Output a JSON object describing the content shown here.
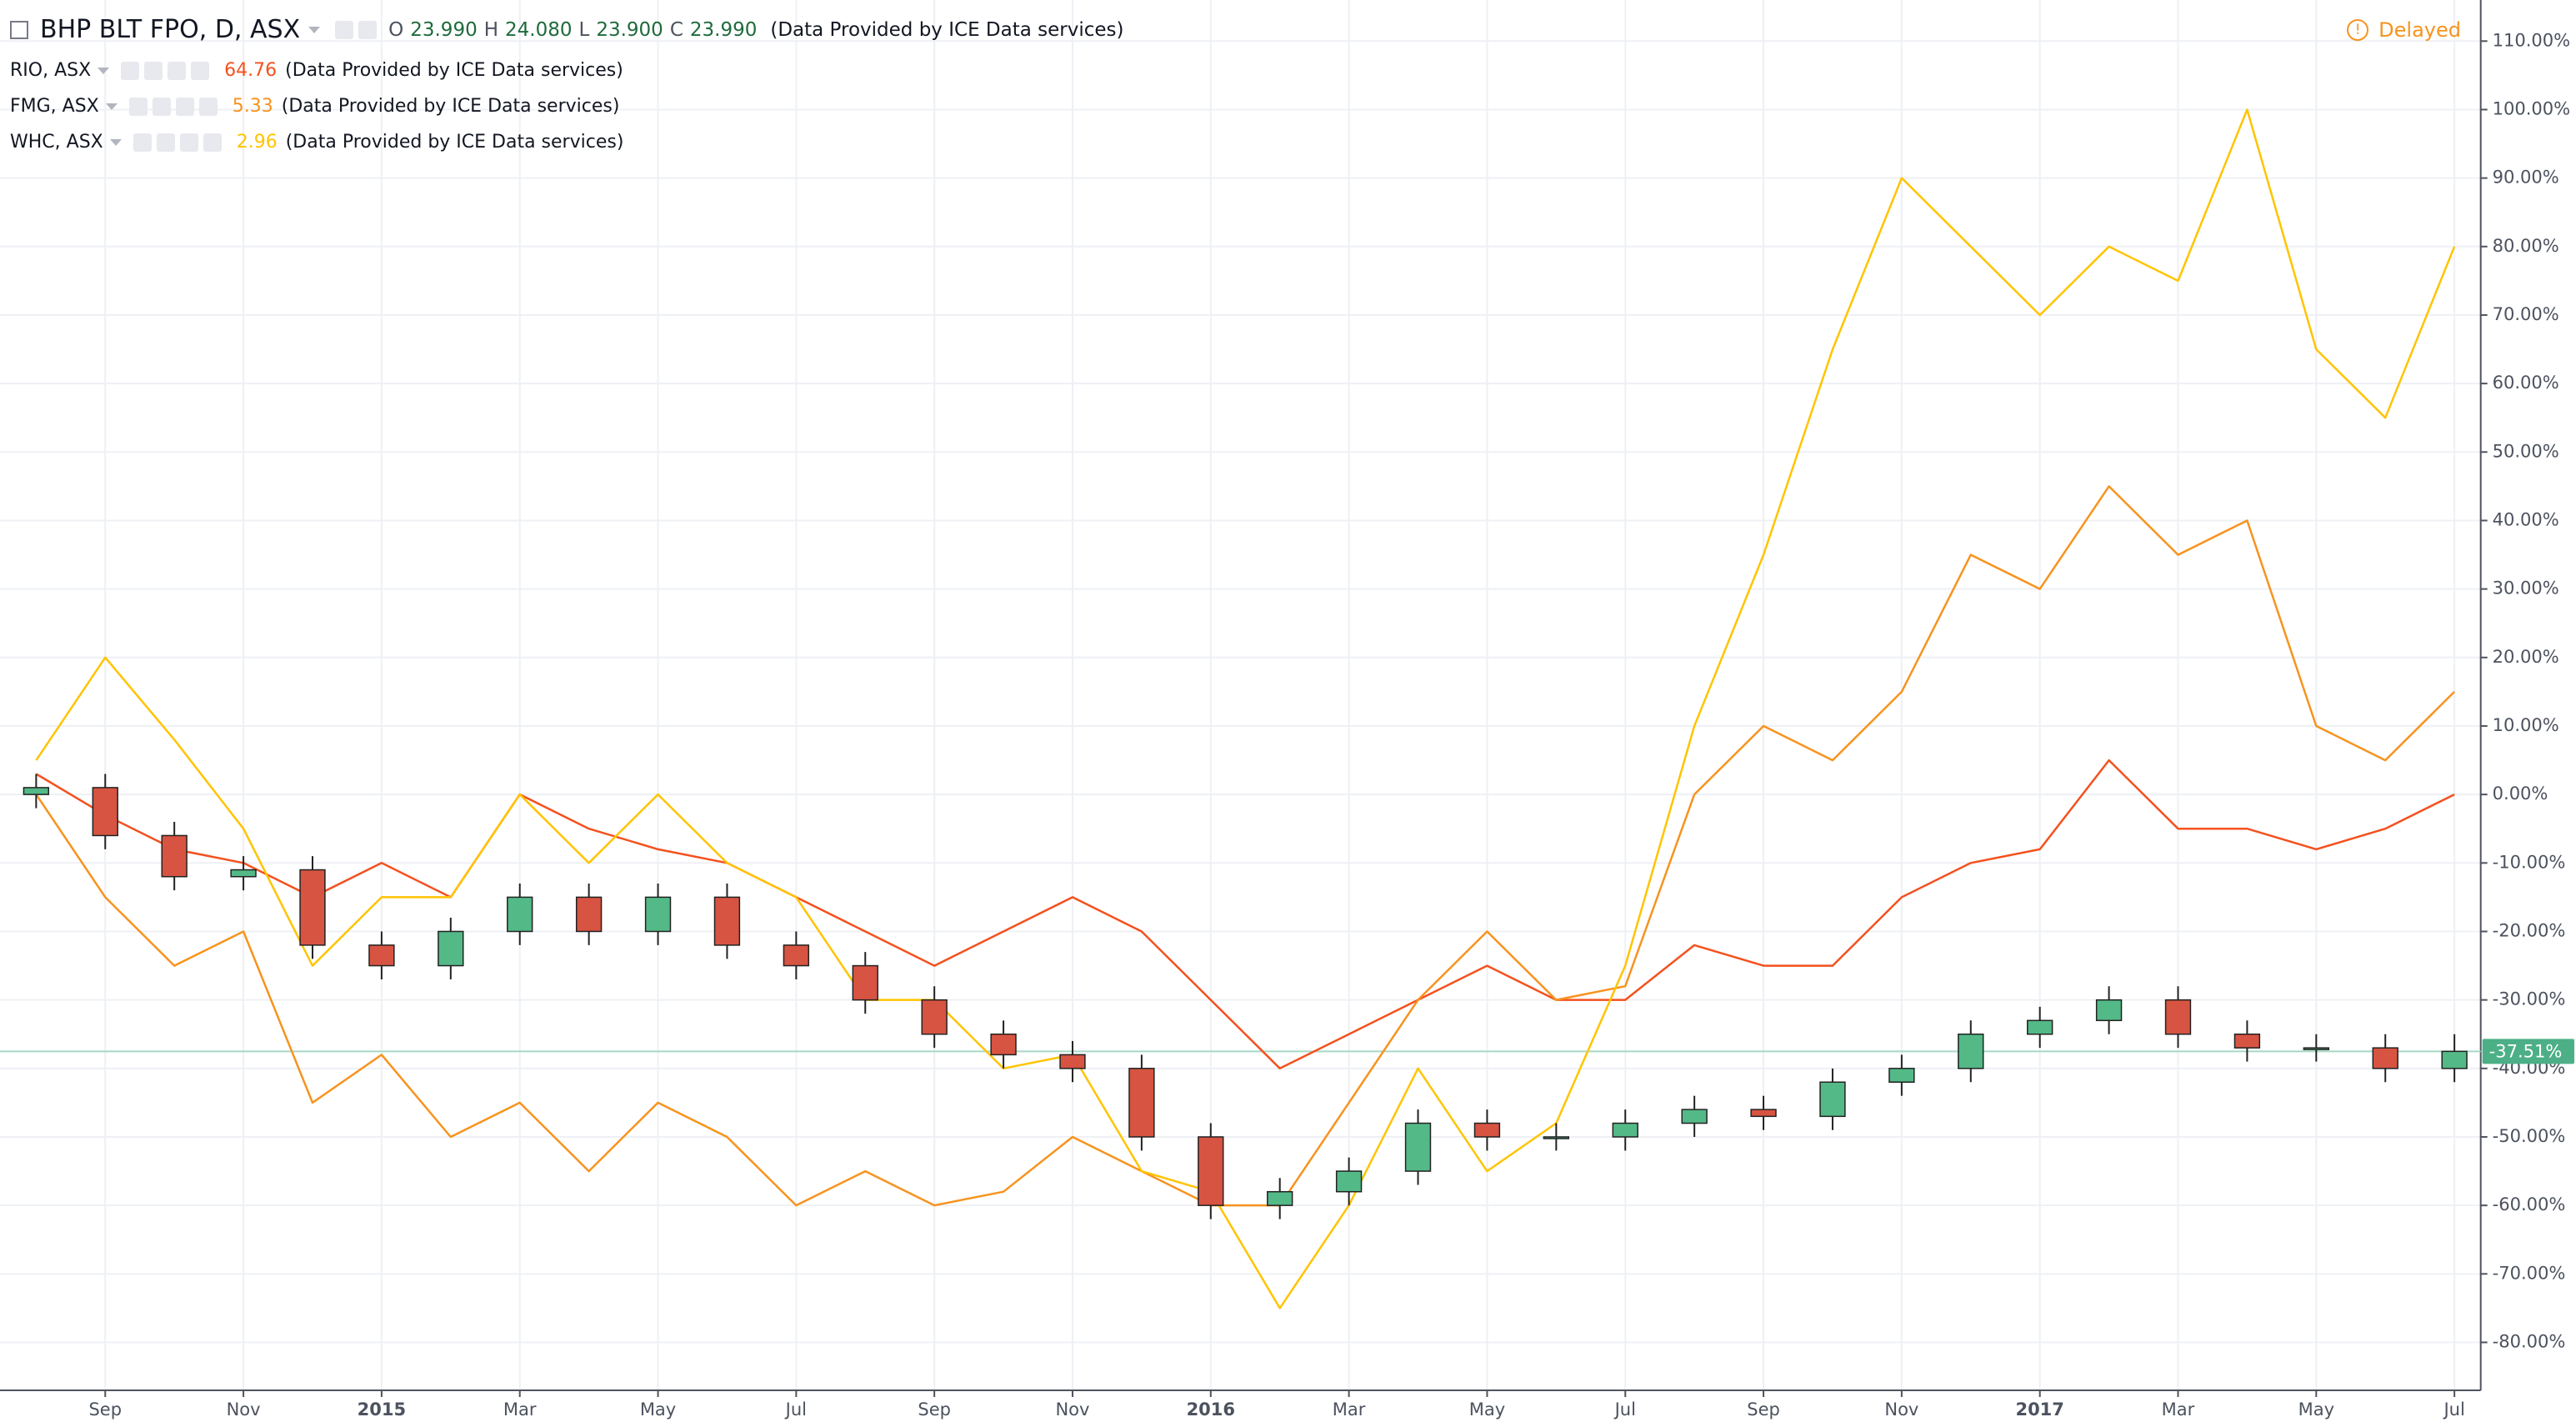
{
  "chart_data": {
    "type": "candlestick",
    "title": "BHP BLT FPO, D, ASX",
    "ohlc": [
      {
        "key": "O",
        "text": "23.990"
      },
      {
        "key": "H",
        "text": "24.080"
      },
      {
        "key": "L",
        "text": "23.900"
      },
      {
        "key": "C",
        "text": "23.990"
      }
    ],
    "source": "(Data Provided by ICE Data services)",
    "status": "Delayed",
    "categories": [
      null,
      "Sep",
      null,
      "Nov",
      null,
      "2015",
      null,
      "Mar",
      null,
      "May",
      null,
      "Jul",
      null,
      "Sep",
      null,
      "Nov",
      null,
      "2016",
      null,
      "Mar",
      null,
      "May",
      null,
      "Jul",
      null,
      "Sep",
      null,
      "Nov",
      null,
      "2017",
      null,
      "Mar",
      null,
      "May",
      null,
      "Jul"
    ],
    "candles": {
      "up_color": "#53b987",
      "down_color": "#d75442",
      "open": [
        0,
        1,
        -6,
        -12,
        -11,
        -22,
        -25,
        -20,
        -15,
        -20,
        -15,
        -22,
        -25,
        -30,
        -35,
        -38,
        -40,
        -50,
        -60,
        -58,
        -55,
        -48,
        -50,
        -50,
        -48,
        -46,
        -47,
        -42,
        -40,
        -35,
        -33,
        -30,
        -35,
        -37,
        -37,
        -40
      ],
      "high": [
        3,
        3,
        -4,
        -9,
        -9,
        -20,
        -18,
        -13,
        -13,
        -13,
        -13,
        -20,
        -23,
        -28,
        -33,
        -36,
        -38,
        -48,
        -56,
        -53,
        -46,
        -46,
        -48,
        -46,
        -44,
        -44,
        -40,
        -38,
        -33,
        -31,
        -28,
        -28,
        -33,
        -35,
        -35,
        -35
      ],
      "low": [
        -2,
        -8,
        -14,
        -14,
        -24,
        -27,
        -27,
        -22,
        -22,
        -22,
        -24,
        -27,
        -32,
        -37,
        -40,
        -42,
        -52,
        -62,
        -62,
        -60,
        -57,
        -52,
        -52,
        -52,
        -50,
        -49,
        -49,
        -44,
        -42,
        -37,
        -35,
        -37,
        -39,
        -39,
        -42,
        -42
      ],
      "close": [
        1,
        -6,
        -12,
        -11,
        -22,
        -25,
        -20,
        -15,
        -20,
        -15,
        -22,
        -25,
        -30,
        -35,
        -38,
        -40,
        -50,
        -60,
        -58,
        -55,
        -48,
        -50,
        -50,
        -48,
        -46,
        -47,
        -42,
        -40,
        -35,
        -33,
        -30,
        -35,
        -37,
        -37,
        -40,
        -37.51
      ]
    },
    "price_line": {
      "value": -37.51,
      "label": "-37.51%",
      "color": "#4caf86"
    },
    "series": [
      {
        "name": "RIO, ASX",
        "last": "64.76",
        "color": "#f4511e",
        "values": [
          3,
          -3,
          -8,
          -10,
          -15,
          -10,
          -15,
          0,
          -5,
          -8,
          -10,
          -15,
          -20,
          -25,
          -20,
          -15,
          -20,
          -30,
          -40,
          -35,
          -30,
          -25,
          -30,
          -30,
          -22,
          -25,
          -25,
          -15,
          -10,
          -8,
          5,
          -5,
          -5,
          -8,
          -5,
          0
        ]
      },
      {
        "name": "FMG, ASX",
        "last": "5.33",
        "color": "#f7931e",
        "values": [
          0,
          -15,
          -25,
          -20,
          -45,
          -38,
          -50,
          -45,
          -55,
          -45,
          -50,
          -60,
          -55,
          -60,
          -58,
          -50,
          -55,
          -60,
          -60,
          -45,
          -30,
          -20,
          -30,
          -28,
          0,
          10,
          5,
          15,
          35,
          30,
          45,
          35,
          40,
          10,
          5,
          15
        ]
      },
      {
        "name": "WHC, ASX",
        "last": "2.96",
        "color": "#ffc400",
        "values": [
          5,
          20,
          8,
          -5,
          -25,
          -15,
          -15,
          0,
          -10,
          0,
          -10,
          -15,
          -30,
          -30,
          -40,
          -38,
          -55,
          -58,
          -75,
          -60,
          -40,
          -55,
          -48,
          -25,
          10,
          35,
          65,
          90,
          80,
          70,
          80,
          75,
          100,
          65,
          55,
          80
        ]
      }
    ],
    "ylim": [
      -87,
      116
    ],
    "yticks": [
      {
        "value": -80,
        "label": "-80.00%"
      },
      {
        "value": -70,
        "label": "-70.00%"
      },
      {
        "value": -60,
        "label": "-60.00%"
      },
      {
        "value": -50,
        "label": "-50.00%"
      },
      {
        "value": -40,
        "label": "-40.00%"
      },
      {
        "value": -30,
        "label": "-30.00%"
      },
      {
        "value": -20,
        "label": "-20.00%"
      },
      {
        "value": -10,
        "label": "-10.00%"
      },
      {
        "value": 0,
        "label": "0.00%"
      },
      {
        "value": 10,
        "label": "10.00%"
      },
      {
        "value": 20,
        "label": "20.00%"
      },
      {
        "value": 30,
        "label": "30.00%"
      },
      {
        "value": 40,
        "label": "40.00%"
      },
      {
        "value": 50,
        "label": "50.00%"
      },
      {
        "value": 60,
        "label": "60.00%"
      },
      {
        "value": 70,
        "label": "70.00%"
      },
      {
        "value": 80,
        "label": "80.00%"
      },
      {
        "value": 90,
        "label": "90.00%"
      },
      {
        "value": 100,
        "label": "100.00%"
      },
      {
        "value": 110,
        "label": "110.00%"
      }
    ],
    "grid": true
  }
}
